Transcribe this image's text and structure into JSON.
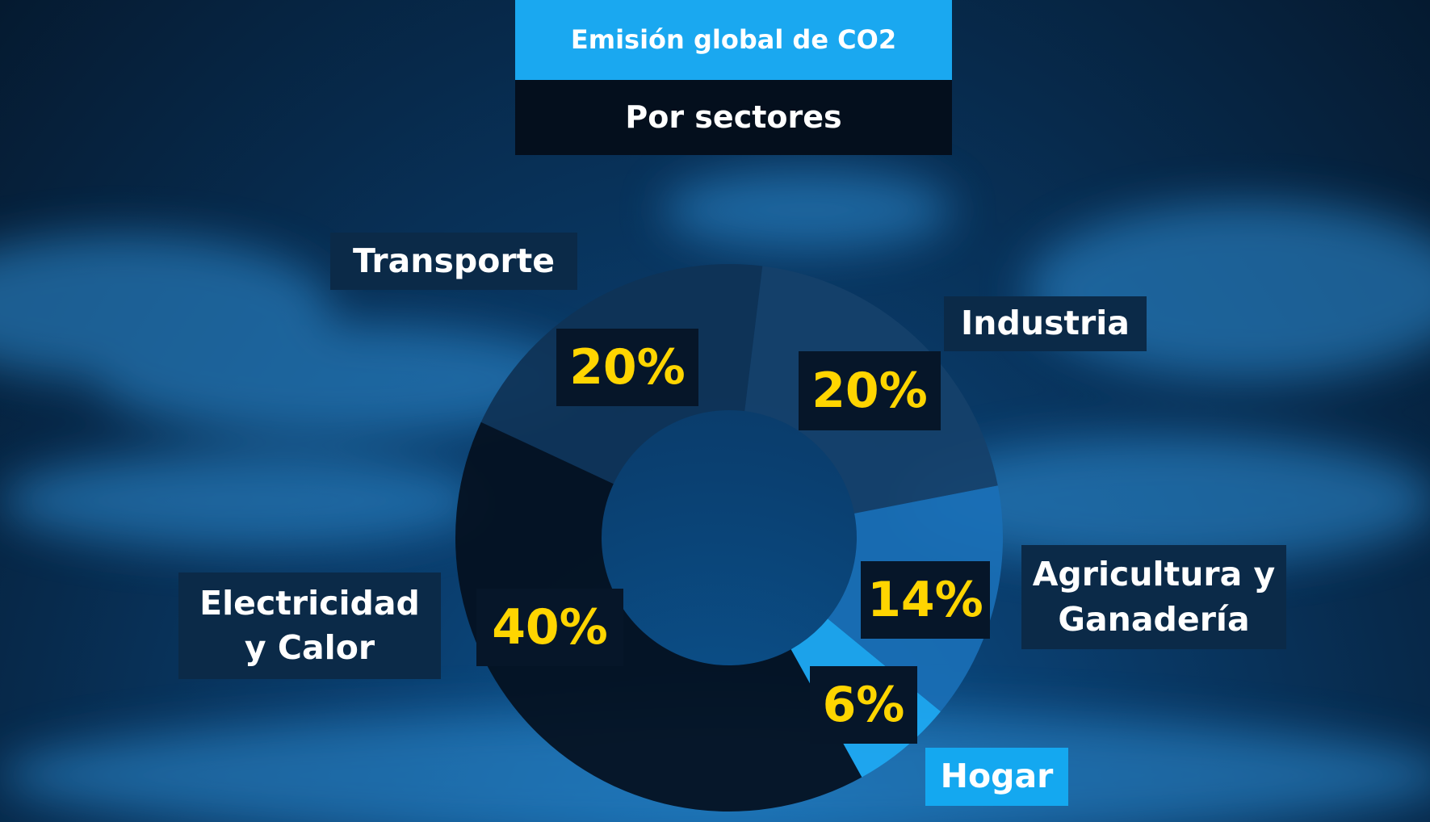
{
  "chart_data": {
    "type": "donut",
    "title": "Emisión global de CO2",
    "subtitle": "Por sectores",
    "categories": [
      "Transporte",
      "Industria",
      "Agricultura y Ganadería",
      "Hogar",
      "Electricidad y Calor"
    ],
    "values": [
      20,
      20,
      14,
      6,
      40
    ],
    "value_labels": [
      "20%",
      "20%",
      "14%",
      "6%",
      "40%"
    ],
    "colors": [
      "#0f3356",
      "#15416b",
      "#1a6fb6",
      "#1ea9f2",
      "#04101f"
    ]
  }
}
